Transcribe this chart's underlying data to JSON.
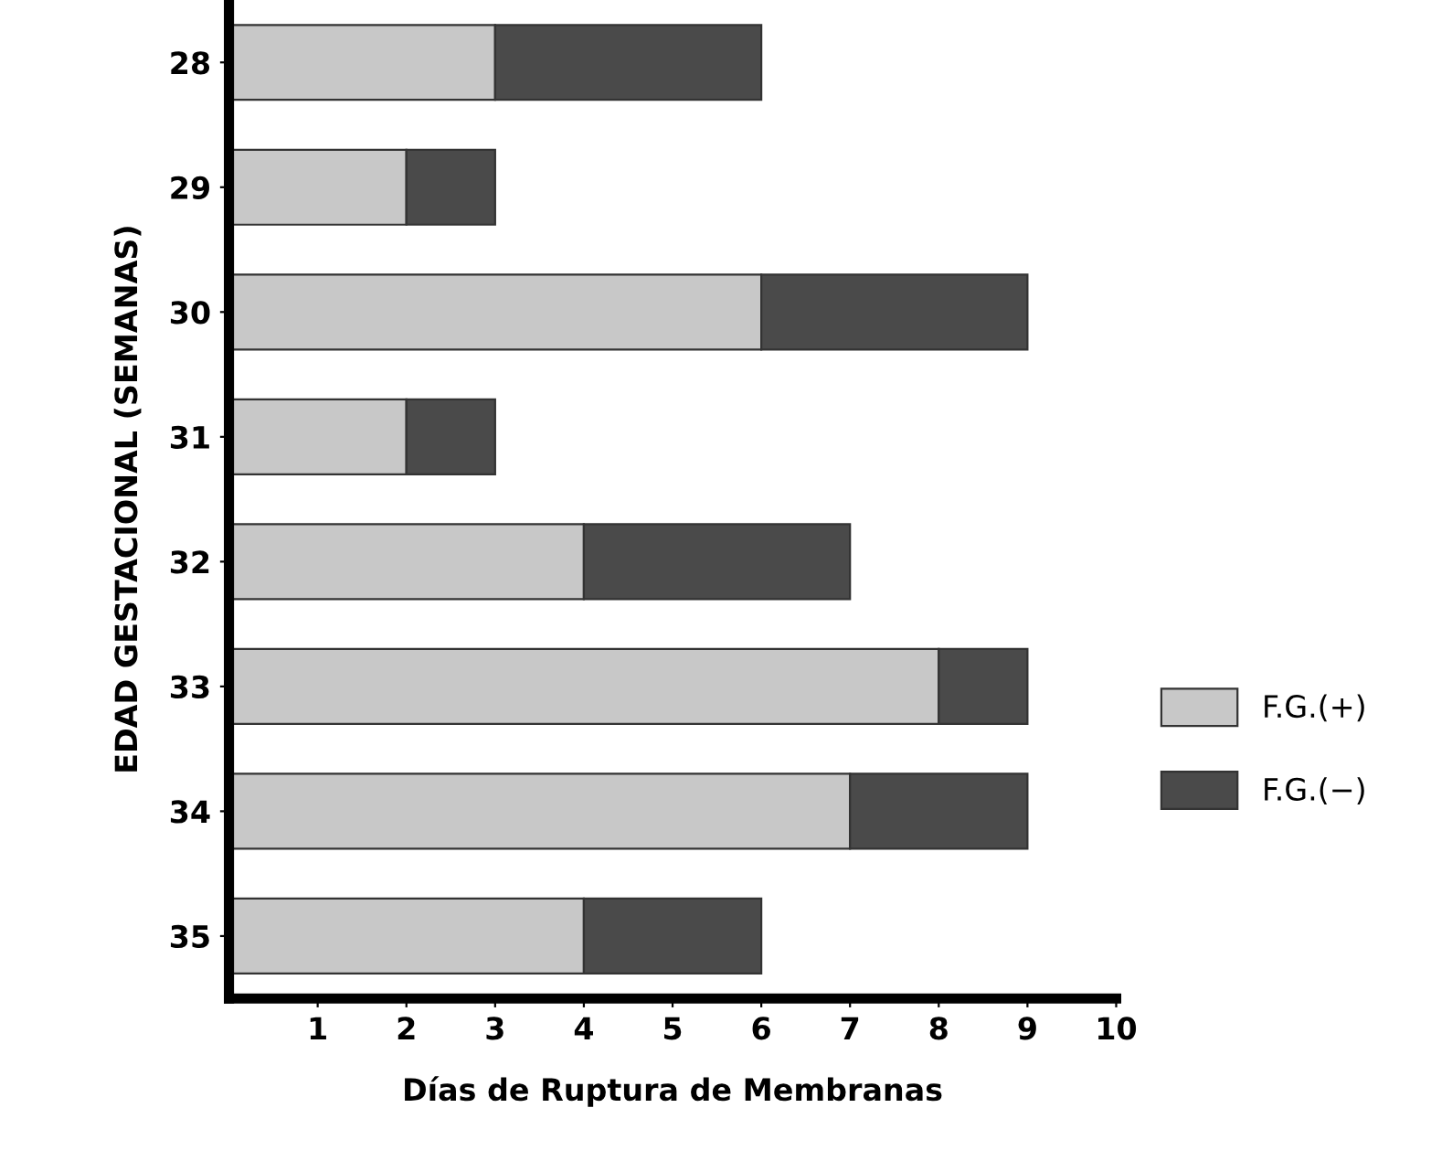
{
  "chart_data": {
    "type": "bar",
    "orientation": "horizontal",
    "stacked": true,
    "xlabel": "Días de Ruptura de Membranas",
    "ylabel": "EDAD GESTACIONAL (SEMANAS)",
    "categories": [
      "28",
      "29",
      "30",
      "31",
      "32",
      "33",
      "34",
      "35"
    ],
    "series": [
      {
        "name": "F.G.(+)",
        "color": "#c8c8c8",
        "values": [
          3,
          2,
          6,
          2,
          4,
          8,
          7,
          4
        ]
      },
      {
        "name": "F.G.(−)",
        "color": "#4a4a4a",
        "values": [
          3,
          1,
          3,
          1,
          3,
          1,
          2,
          2
        ]
      }
    ],
    "xlim": [
      0,
      10
    ],
    "xticks": [
      1,
      2,
      3,
      4,
      5,
      6,
      7,
      8,
      9,
      10
    ],
    "grid": false,
    "legend": "right"
  }
}
